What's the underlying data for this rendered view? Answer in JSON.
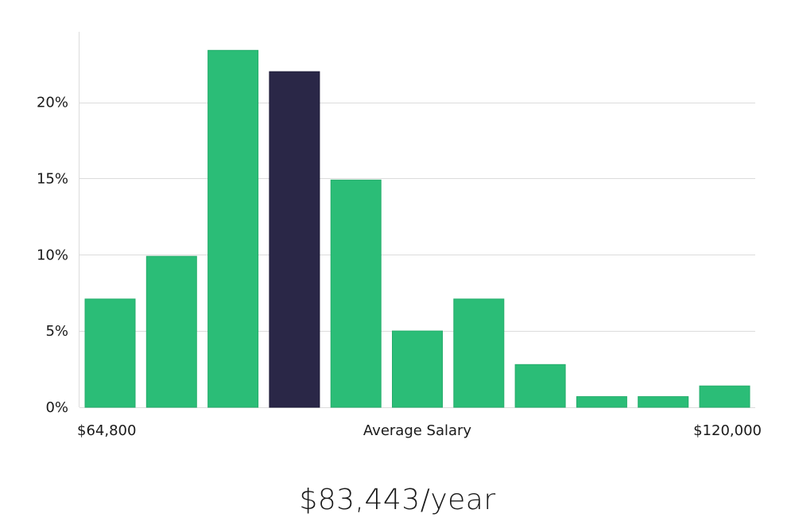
{
  "chart_data": {
    "type": "bar",
    "title": "",
    "xlabel": "Average Salary",
    "ylabel": "",
    "x_range_labels": {
      "min": "$64,800",
      "max": "$120,000"
    },
    "yticks": [
      "0%",
      "5%",
      "10%",
      "15%",
      "20%"
    ],
    "ytick_values": [
      0,
      5,
      10,
      15,
      20
    ],
    "ylim": [
      0,
      24.5
    ],
    "grid": true,
    "values": [
      7.1,
      9.9,
      23.4,
      22.0,
      14.9,
      5.0,
      7.1,
      2.8,
      0.7,
      0.7,
      1.4
    ],
    "highlight_index": 3,
    "colors": {
      "bar": "#2bbd77",
      "highlight": "#2a2747",
      "grid": "#dcdcdc"
    }
  },
  "summary": {
    "salary": "$83,443/year"
  }
}
